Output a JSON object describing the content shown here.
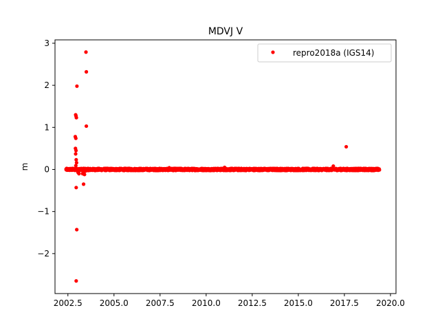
{
  "chart_data": {
    "type": "scatter",
    "title": "MDVJ V",
    "xlabel": "",
    "ylabel": "m",
    "xlim": [
      2001.8,
      2020.3
    ],
    "ylim": [
      -2.95,
      3.08
    ],
    "xticks": [
      2002.5,
      2005.0,
      2007.5,
      2010.0,
      2012.5,
      2015.0,
      2017.5,
      2020.0
    ],
    "xtick_labels": [
      "2002.5",
      "2005.0",
      "2007.5",
      "2010.0",
      "2012.5",
      "2015.0",
      "2017.5",
      "2020.0"
    ],
    "yticks": [
      3,
      2,
      1,
      0,
      -1,
      -2
    ],
    "ytick_labels": [
      "3",
      "2",
      "1",
      "0",
      "−1",
      "−2"
    ],
    "grid": false,
    "legend": {
      "position": "top-right",
      "entries": [
        "repro2018a (IGS14)"
      ]
    },
    "series": [
      {
        "name": "repro2018a (IGS14)",
        "color": "#ff0000",
        "marker": "circle",
        "x_range": [
          2002.4,
          2019.4
        ],
        "baseline": 0.0,
        "outliers": [
          {
            "x": 2002.92,
            "y": 1.3
          },
          {
            "x": 2002.94,
            "y": 1.27
          },
          {
            "x": 2002.96,
            "y": 1.23
          },
          {
            "x": 2002.99,
            "y": 1.98
          },
          {
            "x": 2002.9,
            "y": 0.78
          },
          {
            "x": 2002.93,
            "y": 0.74
          },
          {
            "x": 2002.91,
            "y": 0.5
          },
          {
            "x": 2002.94,
            "y": 0.45
          },
          {
            "x": 2002.92,
            "y": 0.37
          },
          {
            "x": 2002.95,
            "y": 0.23
          },
          {
            "x": 2002.97,
            "y": 0.16
          },
          {
            "x": 2002.93,
            "y": 0.09
          },
          {
            "x": 2003.05,
            "y": -0.07
          },
          {
            "x": 2003.1,
            "y": -0.1
          },
          {
            "x": 2002.95,
            "y": -0.43
          },
          {
            "x": 2003.35,
            "y": -0.35
          },
          {
            "x": 2003.3,
            "y": -0.1
          },
          {
            "x": 2003.4,
            "y": -0.12
          },
          {
            "x": 2003.38,
            "y": -0.06
          },
          {
            "x": 2003.44,
            "y": -0.04
          },
          {
            "x": 2002.98,
            "y": -1.43
          },
          {
            "x": 2002.95,
            "y": -2.65
          },
          {
            "x": 2003.48,
            "y": 2.79
          },
          {
            "x": 2003.5,
            "y": 2.32
          },
          {
            "x": 2003.5,
            "y": 1.03
          },
          {
            "x": 2017.6,
            "y": 0.54
          },
          {
            "x": 2016.9,
            "y": 0.08
          },
          {
            "x": 2011.0,
            "y": 0.05
          },
          {
            "x": 2008.0,
            "y": 0.04
          }
        ]
      }
    ]
  }
}
